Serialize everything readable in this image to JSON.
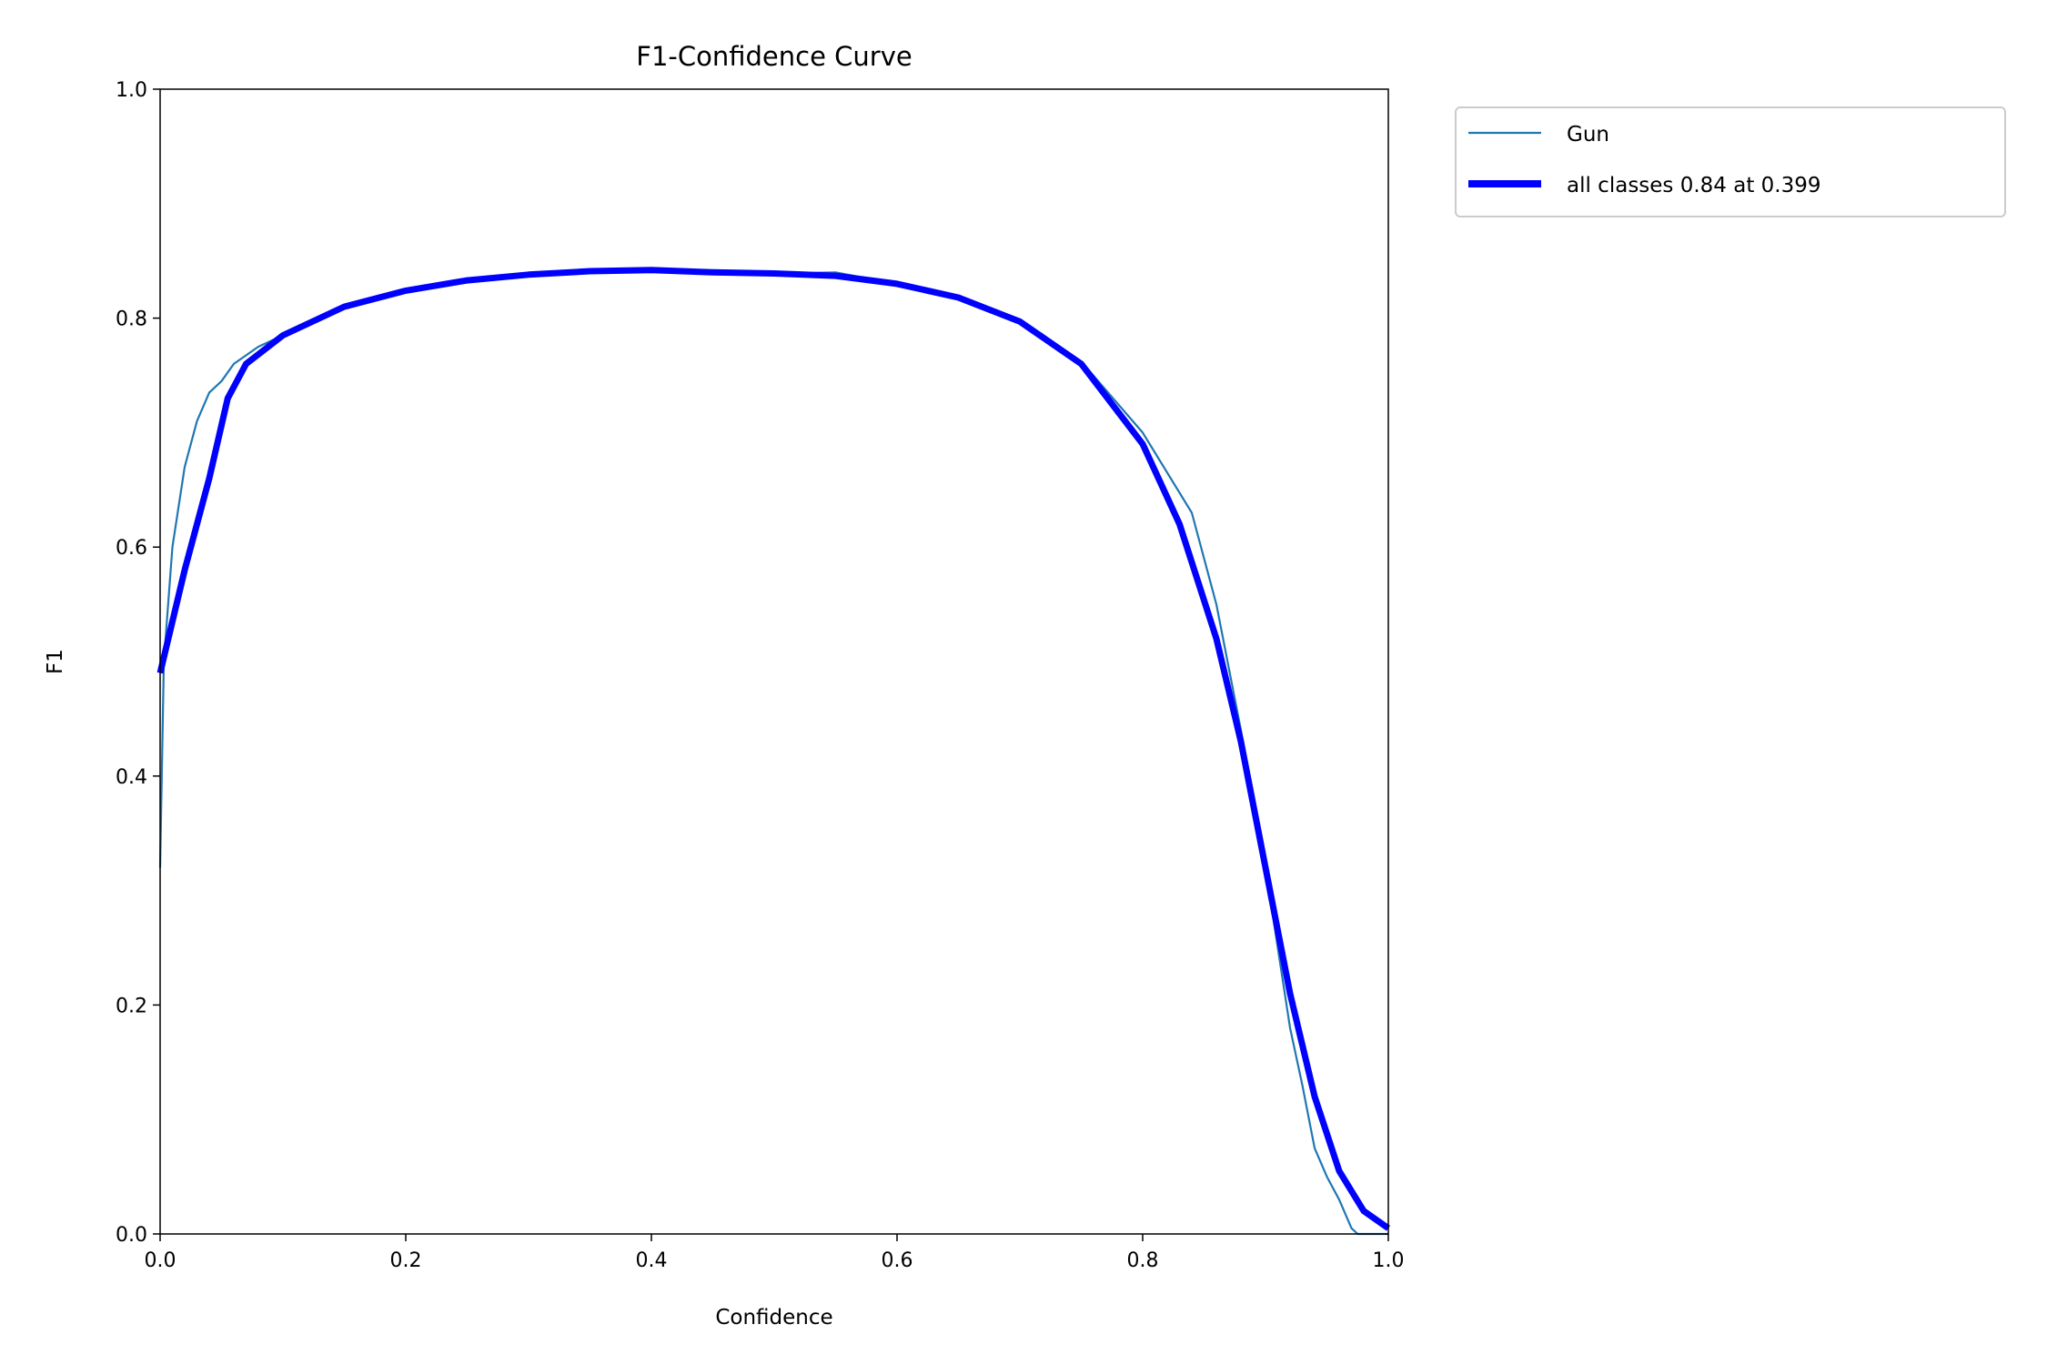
{
  "chart_data": {
    "type": "line",
    "title": "F1-Confidence Curve",
    "xlabel": "Confidence",
    "ylabel": "F1",
    "xlim": [
      0,
      1
    ],
    "ylim": [
      0,
      1
    ],
    "xticks": [
      "0.0",
      "0.2",
      "0.4",
      "0.6",
      "0.8",
      "1.0"
    ],
    "yticks": [
      "0.0",
      "0.2",
      "0.4",
      "0.6",
      "0.8",
      "1.0"
    ],
    "grid": false,
    "legend_position": "outside-top-right",
    "series": [
      {
        "name": "Gun",
        "color": "#1f77b4",
        "x": [
          0,
          0.003,
          0.01,
          0.02,
          0.03,
          0.04,
          0.05,
          0.06,
          0.08,
          0.1,
          0.15,
          0.2,
          0.25,
          0.3,
          0.35,
          0.4,
          0.45,
          0.5,
          0.55,
          0.6,
          0.65,
          0.7,
          0.75,
          0.8,
          0.84,
          0.86,
          0.88,
          0.9,
          0.92,
          0.93,
          0.94,
          0.95,
          0.96,
          0.97,
          0.975,
          1.0
        ],
        "y": [
          0.32,
          0.5,
          0.6,
          0.67,
          0.71,
          0.735,
          0.745,
          0.76,
          0.775,
          0.785,
          0.81,
          0.824,
          0.833,
          0.838,
          0.841,
          0.842,
          0.84,
          0.839,
          0.84,
          0.83,
          0.818,
          0.797,
          0.762,
          0.7,
          0.63,
          0.55,
          0.44,
          0.32,
          0.18,
          0.13,
          0.075,
          0.05,
          0.03,
          0.005,
          0,
          0
        ]
      },
      {
        "name": "all classes 0.84 at 0.399",
        "color": "#0000ff",
        "x": [
          0,
          0.02,
          0.04,
          0.055,
          0.07,
          0.1,
          0.15,
          0.2,
          0.25,
          0.3,
          0.35,
          0.4,
          0.45,
          0.5,
          0.55,
          0.6,
          0.65,
          0.7,
          0.75,
          0.8,
          0.83,
          0.86,
          0.88,
          0.9,
          0.92,
          0.94,
          0.96,
          0.98,
          1.0
        ],
        "y": [
          0.49,
          0.58,
          0.66,
          0.73,
          0.76,
          0.785,
          0.81,
          0.824,
          0.833,
          0.838,
          0.841,
          0.842,
          0.84,
          0.839,
          0.837,
          0.83,
          0.818,
          0.797,
          0.76,
          0.69,
          0.62,
          0.52,
          0.43,
          0.32,
          0.21,
          0.12,
          0.055,
          0.02,
          0.005
        ]
      }
    ]
  }
}
